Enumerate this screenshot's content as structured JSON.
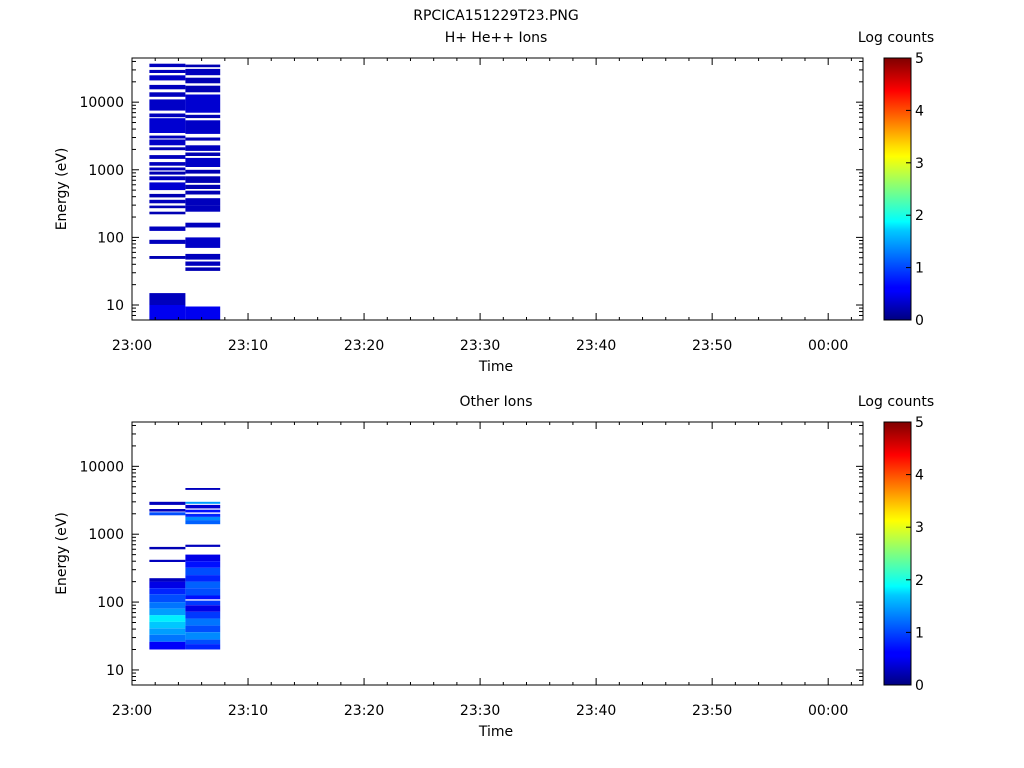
{
  "figure": {
    "title": "RPCICA151229T23.PNG"
  },
  "chart_data": [
    {
      "type": "heatmap",
      "title": "H+ He++ Ions",
      "xlabel": "Time",
      "ylabel": "Energy (eV)",
      "yscale": "log",
      "ylim": [
        6,
        45000
      ],
      "xlim": [
        "23:00",
        "00:03"
      ],
      "x_ticks": [
        "23:00",
        "23:10",
        "23:20",
        "23:30",
        "23:40",
        "23:50",
        "00:00"
      ],
      "y_ticks": [
        "10",
        "100",
        "1000",
        "10000"
      ],
      "colorbar": {
        "label": "Log counts",
        "range": [
          0,
          5
        ],
        "ticks": [
          "0",
          "1",
          "2",
          "3",
          "4",
          "5"
        ]
      },
      "columns": [
        {
          "start": "23:01.5",
          "end": "23:04.6",
          "cells": [
            [
              33000,
              37000,
              0.3
            ],
            [
              27000,
              30000,
              0.3
            ],
            [
              21000,
              25000,
              0.35
            ],
            [
              15500,
              18000,
              0.3
            ],
            [
              12000,
              14000,
              0.3
            ],
            [
              7500,
              11000,
              0.35
            ],
            [
              6000,
              6800,
              0.3
            ],
            [
              3500,
              5800,
              0.4
            ],
            [
              2900,
              3200,
              0.3
            ],
            [
              2300,
              2800,
              0.35
            ],
            [
              1950,
              2150,
              0.25
            ],
            [
              1450,
              1650,
              0.3
            ],
            [
              1150,
              1300,
              0.3
            ],
            [
              980,
              1080,
              0.3
            ],
            [
              850,
              940,
              0.25
            ],
            [
              700,
              800,
              0.3
            ],
            [
              500,
              650,
              0.4
            ],
            [
              390,
              440,
              0.25
            ],
            [
              320,
              360,
              0.3
            ],
            [
              270,
              295,
              0.25
            ],
            [
              220,
              240,
              0.25
            ],
            [
              125,
              145,
              0.3
            ],
            [
              80,
              92,
              0.3
            ],
            [
              48,
              53,
              0.25
            ],
            [
              10,
              15,
              0.3
            ],
            [
              6,
              10,
              0.55
            ]
          ]
        },
        {
          "start": "23:04.6",
          "end": "23:07.6",
          "cells": [
            [
              33000,
              36000,
              0.25
            ],
            [
              25000,
              31000,
              0.3
            ],
            [
              19000,
              23000,
              0.25
            ],
            [
              14000,
              17500,
              0.25
            ],
            [
              7000,
              13000,
              0.4
            ],
            [
              5800,
              6500,
              0.25
            ],
            [
              3400,
              5400,
              0.35
            ],
            [
              2700,
              3000,
              0.25
            ],
            [
              1900,
              2300,
              0.3
            ],
            [
              1600,
              1800,
              0.25
            ],
            [
              1100,
              1500,
              0.35
            ],
            [
              880,
              1000,
              0.25
            ],
            [
              640,
              800,
              0.25
            ],
            [
              520,
              600,
              0.25
            ],
            [
              430,
              490,
              0.25
            ],
            [
              300,
              380,
              0.3
            ],
            [
              240,
              300,
              0.3
            ],
            [
              140,
              165,
              0.3
            ],
            [
              70,
              100,
              0.35
            ],
            [
              47,
              57,
              0.3
            ],
            [
              38,
              44,
              0.3
            ],
            [
              32,
              36,
              0.25
            ],
            [
              6,
              9.5,
              0.55
            ]
          ]
        }
      ]
    },
    {
      "type": "heatmap",
      "title": "Other Ions",
      "xlabel": "Time",
      "ylabel": "Energy (eV)",
      "yscale": "log",
      "ylim": [
        6,
        45000
      ],
      "xlim": [
        "23:00",
        "00:03"
      ],
      "x_ticks": [
        "23:00",
        "23:10",
        "23:20",
        "23:30",
        "23:40",
        "23:50",
        "00:00"
      ],
      "y_ticks": [
        "10",
        "100",
        "1000",
        "10000"
      ],
      "colorbar": {
        "label": "Log counts",
        "range": [
          0,
          5
        ],
        "ticks": [
          "0",
          "1",
          "2",
          "3",
          "4",
          "5"
        ]
      },
      "columns": [
        {
          "start": "23:01.5",
          "end": "23:04.6",
          "cells": [
            [
              2700,
              3000,
              0.3
            ],
            [
              2150,
              2350,
              0.3
            ],
            [
              1900,
              2100,
              1.0
            ],
            [
              600,
              650,
              0.25
            ],
            [
              390,
              420,
              0.3
            ],
            [
              200,
              225,
              0.3
            ],
            [
              160,
              200,
              0.5
            ],
            [
              130,
              160,
              0.8
            ],
            [
              100,
              130,
              1.0
            ],
            [
              80,
              100,
              1.2
            ],
            [
              64,
              80,
              1.4
            ],
            [
              51,
              64,
              1.8
            ],
            [
              41,
              51,
              1.6
            ],
            [
              33,
              41,
              1.4
            ],
            [
              26,
              33,
              1.2
            ],
            [
              20,
              26,
              0.6
            ]
          ]
        },
        {
          "start": "23:04.6",
          "end": "23:07.6",
          "cells": [
            [
              4500,
              4800,
              0.3
            ],
            [
              2800,
              3000,
              1.4
            ],
            [
              2400,
              2700,
              0.4
            ],
            [
              2100,
              2300,
              0.7
            ],
            [
              1800,
              2000,
              0.8
            ],
            [
              1600,
              1800,
              1.3
            ],
            [
              1400,
              1600,
              1.1
            ],
            [
              650,
              700,
              0.3
            ],
            [
              400,
              500,
              0.5
            ],
            [
              320,
              400,
              0.7
            ],
            [
              250,
              320,
              1.0
            ],
            [
              200,
              250,
              0.8
            ],
            [
              160,
              200,
              1.1
            ],
            [
              125,
              160,
              1.0
            ],
            [
              110,
              125,
              0.7
            ],
            [
              90,
              105,
              0.9
            ],
            [
              72,
              90,
              0.5
            ],
            [
              57,
              72,
              0.9
            ],
            [
              45,
              57,
              1.2
            ],
            [
              36,
              45,
              1.0
            ],
            [
              28,
              36,
              1.3
            ],
            [
              24,
              28,
              1.0
            ],
            [
              20,
              24,
              0.8
            ]
          ]
        }
      ]
    }
  ]
}
